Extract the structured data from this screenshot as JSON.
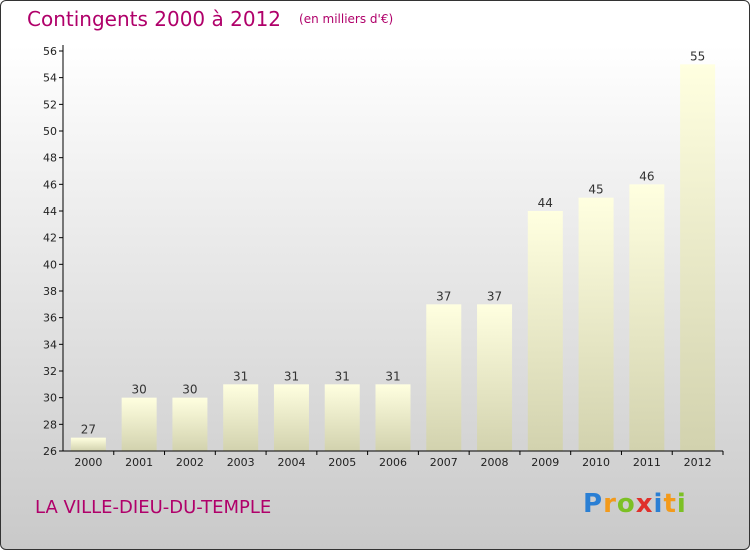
{
  "header": {
    "title": "Contingents 2000 à 2012",
    "unit": "(en milliers d'€)"
  },
  "footer": {
    "commune": "LA VILLE-DIEU-DU-TEMPLE",
    "logo": "Proxiti"
  },
  "colors": {
    "title": "#b0006a",
    "bar_top": "#ffffe0",
    "bar_bottom": "#d2d2ae",
    "axis": "#000000"
  },
  "chart_data": {
    "type": "bar",
    "categories": [
      "2000",
      "2001",
      "2002",
      "2003",
      "2004",
      "2005",
      "2006",
      "2007",
      "2008",
      "2009",
      "2010",
      "2011",
      "2012"
    ],
    "values": [
      27,
      30,
      30,
      31,
      31,
      31,
      31,
      37,
      37,
      44,
      45,
      46,
      55
    ],
    "ylim": [
      26,
      56
    ],
    "yticks": [
      26,
      28,
      30,
      32,
      34,
      36,
      38,
      40,
      42,
      44,
      46,
      48,
      50,
      52,
      54,
      56
    ],
    "grid": false,
    "data_labels": true
  }
}
